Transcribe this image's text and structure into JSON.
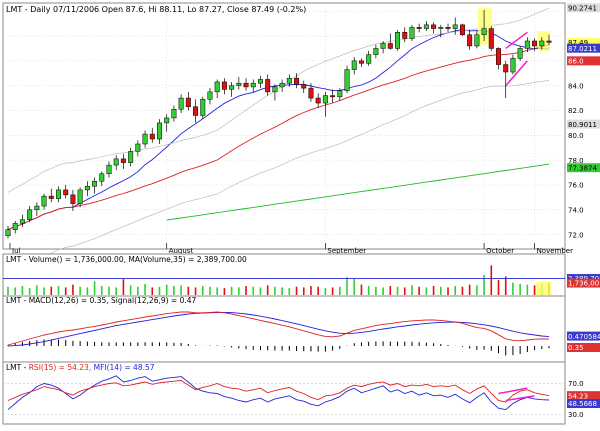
{
  "header": {
    "symbol": "LMT",
    "info": " - Daily 07/11/2006 Open 87.6, Hi 88.11, Lo 87.27, Close 87.49 (-0.2%)"
  },
  "colors": {
    "up_candle": "#33cc33",
    "down_candle": "#dd1111",
    "blue_line": "#2222dd",
    "red_line": "#dd2222",
    "grey_line": "#bbbbbb",
    "green_line": "#22bb22",
    "highlight": "#ffff66",
    "magenta": "#ee22cc",
    "grid": "#cccccc"
  },
  "price_axis_labels": [
    "90.2741",
    "87.49",
    "87.0211",
    "86.0",
    "84.0",
    "82.0",
    "80.9011",
    "80.0",
    "78.0",
    "77.3874",
    "76.0",
    "74.0",
    "72.0"
  ],
  "month_labels": [
    "Jul",
    "August",
    "September",
    "October",
    "November"
  ],
  "volume_panel": {
    "label_symbol": "LMT",
    "label_text": " - Volume() = 1,736,000.00, MA(Volume,35) = 2,389,700.00",
    "axis_labels": [
      "2,389,70",
      "1,736,00"
    ]
  },
  "macd_panel": {
    "label_symbol": "LMT",
    "label_text": " - MACD(12,26) = 0.35, Signal(12,26,9) = 0.47",
    "axis_labels": [
      "0.470584",
      "0.35"
    ]
  },
  "rsi_panel": {
    "label_symbol": "LMT",
    "label_rsi": "RSI(15) = 54.23,",
    "label_mfi": "MFI(14) = 48.57",
    "axis_labels": [
      "70.0",
      "54.23",
      "48.5668",
      "30.0"
    ]
  },
  "chart_data": {
    "type": "candlestick",
    "title": "LMT - Daily 07/11/2006 Open 87.6, Hi 88.11, Lo 87.27, Close 87.49 (-0.2%)",
    "x_range": [
      "2006-06-30",
      "2006-11-07"
    ],
    "ylim": [
      71.0,
      90.5
    ],
    "months": [
      "Jul",
      "August",
      "September",
      "October",
      "November"
    ],
    "ohlc": [
      [
        71.9,
        72.7,
        71.7,
        72.4
      ],
      [
        72.4,
        73.1,
        72.1,
        72.9
      ],
      [
        72.9,
        73.6,
        72.6,
        73.2
      ],
      [
        73.2,
        74.3,
        73.0,
        74.0
      ],
      [
        74.0,
        74.6,
        73.5,
        74.3
      ],
      [
        74.3,
        75.3,
        74.0,
        75.1
      ],
      [
        75.1,
        75.7,
        74.6,
        74.9
      ],
      [
        74.9,
        75.9,
        74.6,
        75.6
      ],
      [
        75.6,
        76.0,
        74.9,
        75.2
      ],
      [
        75.2,
        75.6,
        73.9,
        74.5
      ],
      [
        74.5,
        75.8,
        74.2,
        75.6
      ],
      [
        75.6,
        76.3,
        75.1,
        75.9
      ],
      [
        75.9,
        76.6,
        75.3,
        76.3
      ],
      [
        76.3,
        77.1,
        75.9,
        76.9
      ],
      [
        76.9,
        77.9,
        76.6,
        77.6
      ],
      [
        77.6,
        78.4,
        77.2,
        78.1
      ],
      [
        78.1,
        78.5,
        77.3,
        77.8
      ],
      [
        77.8,
        79.0,
        77.5,
        78.7
      ],
      [
        78.7,
        79.6,
        78.3,
        79.3
      ],
      [
        79.3,
        80.4,
        79.0,
        80.1
      ],
      [
        80.1,
        80.6,
        79.4,
        79.7
      ],
      [
        79.7,
        81.3,
        79.3,
        81.0
      ],
      [
        81.0,
        81.7,
        80.3,
        81.4
      ],
      [
        81.4,
        82.4,
        81.1,
        82.1
      ],
      [
        82.1,
        83.3,
        81.8,
        83.0
      ],
      [
        83.0,
        83.5,
        82.0,
        82.3
      ],
      [
        82.3,
        82.9,
        81.0,
        81.6
      ],
      [
        81.6,
        83.1,
        81.3,
        82.9
      ],
      [
        82.9,
        83.8,
        82.5,
        83.5
      ],
      [
        83.5,
        84.5,
        83.0,
        84.3
      ],
      [
        84.3,
        84.6,
        83.3,
        83.7
      ],
      [
        83.7,
        84.3,
        83.1,
        84.0
      ],
      [
        84.0,
        84.7,
        83.7,
        84.2
      ],
      [
        84.2,
        84.6,
        83.6,
        83.9
      ],
      [
        83.9,
        84.5,
        83.5,
        84.2
      ],
      [
        84.2,
        84.8,
        83.8,
        84.5
      ],
      [
        84.5,
        84.9,
        83.2,
        83.5
      ],
      [
        83.5,
        84.1,
        82.8,
        83.9
      ],
      [
        83.9,
        84.5,
        83.5,
        84.2
      ],
      [
        84.2,
        84.9,
        83.9,
        84.6
      ],
      [
        84.6,
        85.0,
        83.8,
        84.1
      ],
      [
        84.1,
        84.4,
        83.4,
        83.8
      ],
      [
        83.8,
        84.2,
        82.7,
        83.0
      ],
      [
        83.0,
        83.4,
        82.2,
        82.6
      ],
      [
        82.6,
        83.5,
        81.5,
        83.2
      ],
      [
        83.2,
        83.7,
        82.6,
        83.1
      ],
      [
        83.1,
        83.8,
        82.8,
        83.6
      ],
      [
        83.6,
        85.6,
        83.4,
        85.3
      ],
      [
        85.3,
        86.3,
        84.9,
        86.0
      ],
      [
        86.0,
        86.2,
        85.5,
        85.8
      ],
      [
        85.8,
        86.8,
        85.6,
        86.5
      ],
      [
        86.5,
        87.3,
        86.2,
        87.0
      ],
      [
        87.0,
        87.6,
        86.6,
        87.4
      ],
      [
        87.4,
        88.2,
        86.9,
        87.0
      ],
      [
        87.0,
        88.5,
        86.8,
        88.3
      ],
      [
        88.3,
        88.7,
        87.5,
        87.8
      ],
      [
        87.8,
        88.9,
        87.6,
        88.7
      ],
      [
        88.7,
        89.0,
        88.3,
        88.6
      ],
      [
        88.6,
        89.2,
        88.4,
        88.9
      ],
      [
        88.9,
        89.1,
        88.2,
        88.6
      ],
      [
        88.6,
        88.9,
        87.9,
        88.7
      ],
      [
        88.7,
        89.0,
        88.3,
        88.6
      ],
      [
        88.6,
        89.5,
        88.1,
        88.9
      ],
      [
        88.9,
        89.0,
        88.0,
        88.1
      ],
      [
        88.1,
        88.5,
        86.9,
        87.2
      ],
      [
        87.2,
        88.4,
        87.0,
        88.1
      ],
      [
        88.1,
        90.1,
        87.6,
        88.6
      ],
      [
        88.6,
        88.8,
        86.8,
        87.0
      ],
      [
        87.0,
        87.1,
        85.3,
        85.7
      ],
      [
        85.7,
        86.0,
        83.0,
        85.1
      ],
      [
        85.1,
        86.5,
        84.9,
        86.2
      ],
      [
        86.2,
        87.2,
        86.0,
        87.0
      ],
      [
        87.0,
        87.9,
        86.7,
        87.6
      ],
      [
        87.6,
        87.8,
        86.8,
        87.2
      ],
      [
        87.2,
        87.9,
        86.9,
        87.6
      ],
      [
        87.6,
        88.11,
        87.27,
        87.49
      ]
    ],
    "volume": [
      1.2,
      1.1,
      1.3,
      1.0,
      1.4,
      1.1,
      1.2,
      1.3,
      1.1,
      1.5,
      1.2,
      1.1,
      2.0,
      1.3,
      1.2,
      1.1,
      2.3,
      1.4,
      1.2,
      1.6,
      1.1,
      1.2,
      1.5,
      1.3,
      1.4,
      1.2,
      1.1,
      1.3,
      1.2,
      1.1,
      1.0,
      1.2,
      1.1,
      1.3,
      1.2,
      1.1,
      1.4,
      1.2,
      1.1,
      1.0,
      1.2,
      1.1,
      1.3,
      1.2,
      1.0,
      1.1,
      1.2,
      2.6,
      2.4,
      1.5,
      1.3,
      1.2,
      1.1,
      1.3,
      1.2,
      1.1,
      1.4,
      1.2,
      1.1,
      1.3,
      1.2,
      1.1,
      1.3,
      1.2,
      1.5,
      1.4,
      2.9,
      4.3,
      2.2,
      2.7,
      1.8,
      1.6,
      1.5,
      1.4,
      1.6,
      1.736
    ],
    "volume_ma": 2.3897,
    "macd": [
      0.05,
      0.15,
      0.25,
      0.35,
      0.45,
      0.55,
      0.62,
      0.7,
      0.76,
      0.8,
      0.86,
      0.92,
      0.98,
      1.05,
      1.12,
      1.2,
      1.26,
      1.32,
      1.38,
      1.45,
      1.5,
      1.56,
      1.62,
      1.66,
      1.7,
      1.7,
      1.66,
      1.66,
      1.68,
      1.7,
      1.66,
      1.6,
      1.52,
      1.44,
      1.36,
      1.28,
      1.2,
      1.12,
      1.04,
      0.96,
      0.86,
      0.76,
      0.66,
      0.56,
      0.48,
      0.46,
      0.5,
      0.64,
      0.78,
      0.86,
      0.94,
      1.02,
      1.08,
      1.12,
      1.18,
      1.22,
      1.26,
      1.28,
      1.3,
      1.3,
      1.28,
      1.24,
      1.2,
      1.14,
      1.02,
      0.92,
      0.88,
      0.76,
      0.56,
      0.36,
      0.28,
      0.26,
      0.3,
      0.34,
      0.35,
      0.35
    ],
    "signal": [
      0.0,
      0.02,
      0.05,
      0.1,
      0.16,
      0.22,
      0.3,
      0.38,
      0.46,
      0.54,
      0.62,
      0.7,
      0.78,
      0.86,
      0.94,
      1.02,
      1.08,
      1.14,
      1.2,
      1.26,
      1.32,
      1.38,
      1.44,
      1.5,
      1.55,
      1.6,
      1.63,
      1.65,
      1.66,
      1.67,
      1.68,
      1.67,
      1.64,
      1.6,
      1.55,
      1.49,
      1.42,
      1.35,
      1.27,
      1.19,
      1.11,
      1.02,
      0.93,
      0.84,
      0.76,
      0.69,
      0.64,
      0.62,
      0.64,
      0.68,
      0.73,
      0.79,
      0.85,
      0.9,
      0.96,
      1.0,
      1.05,
      1.09,
      1.13,
      1.16,
      1.18,
      1.19,
      1.19,
      1.18,
      1.15,
      1.11,
      1.06,
      1.0,
      0.92,
      0.83,
      0.74,
      0.66,
      0.6,
      0.55,
      0.5,
      0.47
    ],
    "rsi": [
      48,
      52,
      56,
      59,
      62,
      66,
      64,
      62,
      58,
      55,
      60,
      63,
      66,
      68,
      70,
      71,
      67,
      68,
      70,
      72,
      69,
      71,
      72,
      73,
      74,
      68,
      62,
      65,
      67,
      70,
      66,
      64,
      63,
      60,
      62,
      64,
      58,
      61,
      63,
      65,
      60,
      57,
      52,
      49,
      54,
      55,
      58,
      64,
      68,
      66,
      69,
      71,
      72,
      68,
      70,
      66,
      68,
      67,
      69,
      66,
      67,
      66,
      68,
      62,
      57,
      63,
      67,
      57,
      48,
      46,
      55,
      60,
      62,
      58,
      56,
      54.23
    ],
    "mfi": [
      36,
      44,
      52,
      58,
      66,
      70,
      68,
      64,
      57,
      50,
      55,
      62,
      68,
      73,
      76,
      80,
      72,
      74,
      77,
      79,
      73,
      75,
      77,
      78,
      79,
      72,
      64,
      60,
      58,
      57,
      53,
      51,
      48,
      46,
      49,
      51,
      46,
      50,
      52,
      54,
      49,
      47,
      43,
      41,
      46,
      49,
      53,
      60,
      64,
      58,
      61,
      64,
      67,
      59,
      62,
      57,
      60,
      55,
      58,
      54,
      55,
      52,
      56,
      50,
      45,
      52,
      58,
      46,
      38,
      36,
      44,
      49,
      52,
      50,
      49,
      48.57
    ]
  }
}
